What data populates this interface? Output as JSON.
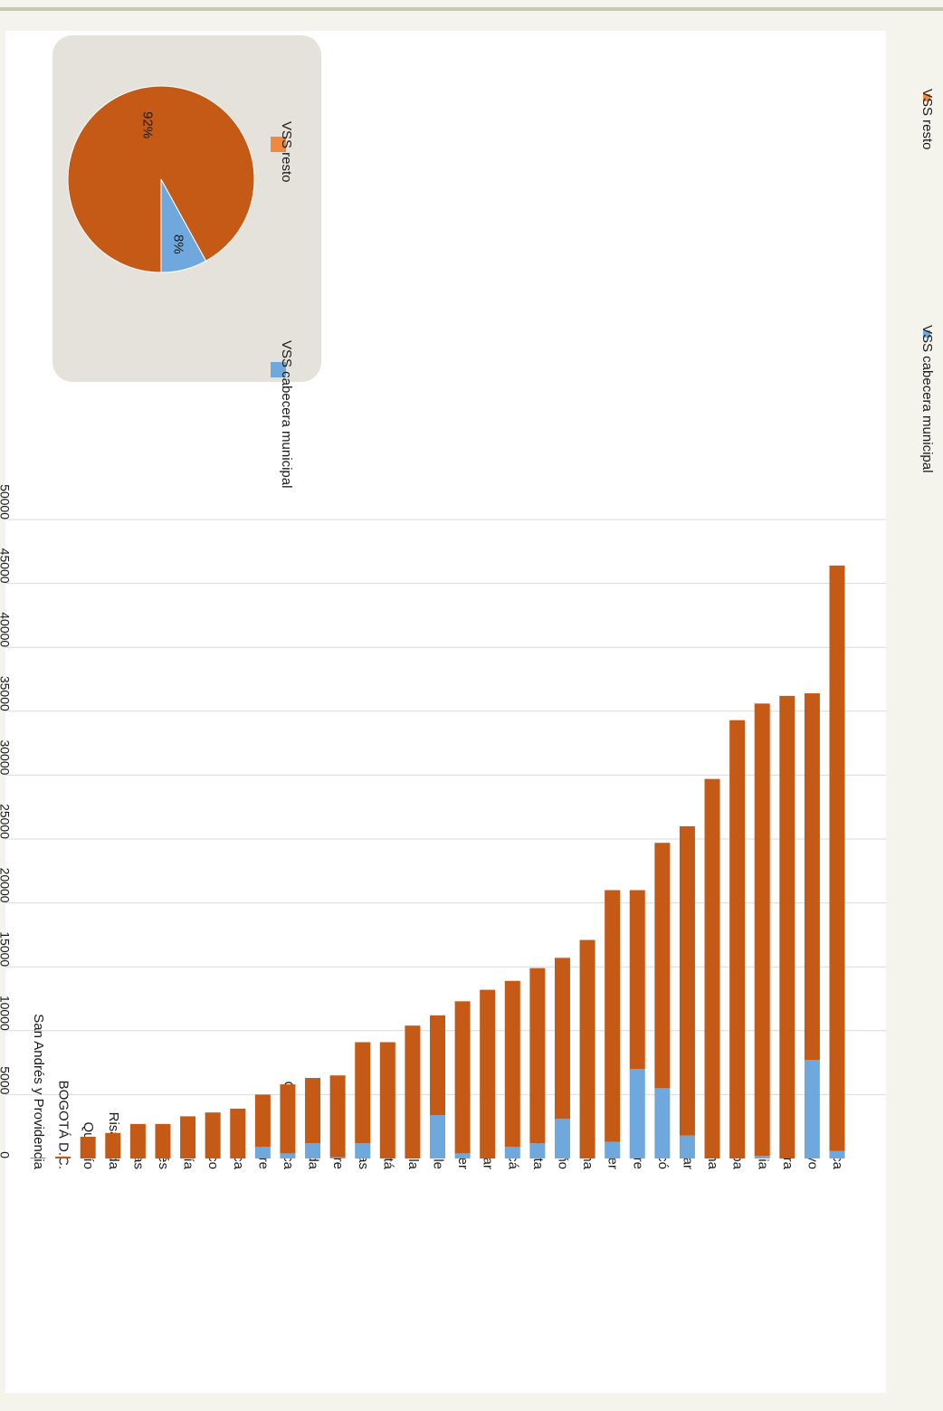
{
  "chart_data": {
    "type": "bar",
    "stacked": true,
    "orientation": "horizontal",
    "rotation_degrees": 180,
    "categories": [
      "Cauca",
      "Putumayo",
      "La Guajira",
      "Antioquia",
      "Córdoba",
      "Magdalena",
      "Bolívar",
      "Chocó",
      "Casanare",
      "Santander",
      "Tolima",
      "Nariño",
      "Meta",
      "Boyacá",
      "Cesar",
      "Norte de Santander",
      "Valle",
      "Huila",
      "Caquetá",
      "Amazonas",
      "Guaviare",
      "Vichada",
      "Cundinamarca",
      "Sucre",
      "Arauca",
      "Atlántico",
      "Guainía",
      "Vaupés",
      "Caldas",
      "Risaralda",
      "Quindío",
      "BOGOTÁ D.C.",
      "San Andrés y Providencia"
    ],
    "series": [
      {
        "name": "VSS cabecera municipal",
        "color": "#6fa8dc",
        "values": [
          600,
          7700,
          0,
          200,
          0,
          0,
          1800,
          5500,
          7000,
          1300,
          0,
          3100,
          1200,
          900,
          0,
          400,
          3400,
          0,
          0,
          1200,
          100,
          1200,
          400,
          900,
          0,
          0,
          0,
          0,
          0,
          0,
          0,
          0,
          0
        ]
      },
      {
        "name": "VSS resto",
        "color": "#c55a16",
        "values": [
          45800,
          28700,
          36200,
          35400,
          34300,
          29700,
          24200,
          19200,
          14000,
          19700,
          17100,
          12600,
          13700,
          13000,
          13200,
          11900,
          7800,
          10400,
          9100,
          7900,
          6400,
          5100,
          5400,
          4100,
          3900,
          3600,
          3300,
          2700,
          2700,
          2000,
          1700,
          150,
          60
        ]
      }
    ],
    "ylim": [
      0,
      50000
    ],
    "ticks": [
      0,
      5000,
      10000,
      15000,
      20000,
      25000,
      30000,
      35000,
      40000,
      45000,
      50000
    ],
    "grid": true,
    "legend": "bottom",
    "legend_entries": [
      "VSS cabecera municipal",
      "VSS resto"
    ],
    "inset_pie": {
      "type": "pie",
      "labels": [
        "VSS cabecera municipal",
        "VSS resto"
      ],
      "values": [
        8,
        92
      ],
      "data_labels": [
        "8%",
        "92%"
      ],
      "colors": [
        "#6fa8dc",
        "#c55a16"
      ],
      "legend_colors": [
        "#6fa8dc",
        "#f0883e"
      ],
      "legend": "bottom"
    }
  },
  "colors": {
    "frame_bg": "#f4f3ec",
    "plot_bg": "#ffffff",
    "grid": "#d9d9d9",
    "inset_bg": "#e4e2da",
    "border": "#c8c9b5"
  }
}
